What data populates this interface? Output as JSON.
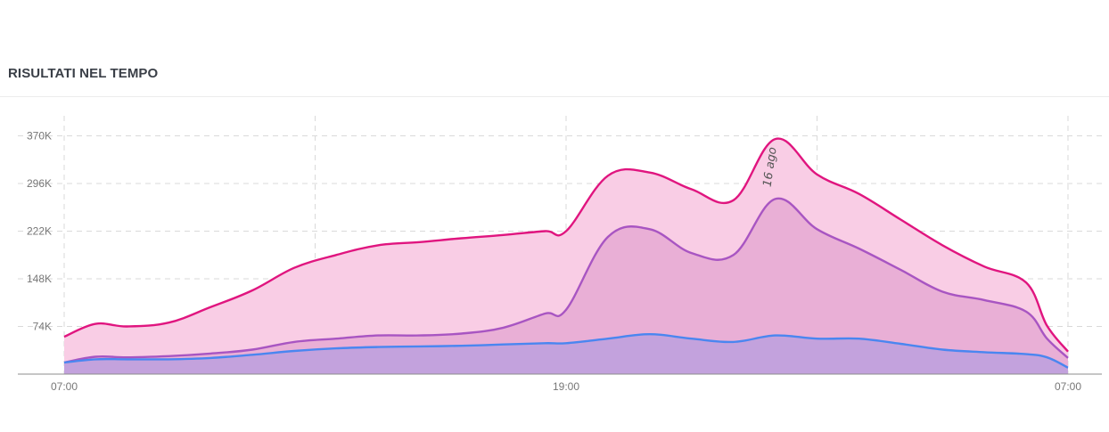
{
  "header": {
    "title": "RISULTATI NEL TEMPO"
  },
  "chart_data": {
    "type": "area",
    "title": "RISULTATI NEL TEMPO",
    "xlabel": "",
    "ylabel": "",
    "x_tick_labels": [
      "07:00",
      "19:00",
      "07:00"
    ],
    "y_ticks": [
      74000,
      148000,
      222000,
      296000,
      370000
    ],
    "y_tick_labels": [
      "74K",
      "148K",
      "222K",
      "296K",
      "370K"
    ],
    "ylim": [
      0,
      400000
    ],
    "x_range_hours": [
      0,
      24
    ],
    "grid": true,
    "legend": "none",
    "annotations": [
      {
        "label": "16 ago",
        "x_hours": 17
      }
    ],
    "series": [
      {
        "color": "#e0157f",
        "fill": "#f9cde5",
        "x_hours": [
          0,
          0.75,
          1.5,
          2.5,
          3.5,
          4.5,
          5.5,
          6.5,
          7.5,
          8.5,
          9.5,
          10.5,
          11.5,
          12,
          13,
          14,
          15,
          16,
          17,
          18,
          19,
          20,
          21,
          22,
          23,
          23.5,
          24
        ],
        "values": [
          58000,
          78000,
          74000,
          80000,
          104000,
          130000,
          165000,
          185000,
          200000,
          205000,
          211000,
          216000,
          222000,
          222000,
          308000,
          313000,
          287000,
          270000,
          365000,
          310000,
          280000,
          240000,
          200000,
          167000,
          142000,
          75000,
          35000
        ]
      },
      {
        "color": "#a855c2",
        "fill": "#e9afd6",
        "x_hours": [
          0,
          0.75,
          1.5,
          2.5,
          3.5,
          4.5,
          5.5,
          6.5,
          7.5,
          8.5,
          9.5,
          10.5,
          11.5,
          12,
          13,
          14,
          15,
          16,
          17,
          18,
          19,
          20,
          21,
          22,
          23,
          23.5,
          24
        ],
        "values": [
          18000,
          27000,
          26000,
          28000,
          32000,
          38000,
          50000,
          55000,
          60000,
          60000,
          63000,
          72000,
          94000,
          100000,
          213000,
          225000,
          188000,
          185000,
          272000,
          225000,
          195000,
          162000,
          128000,
          115000,
          97000,
          55000,
          25000
        ]
      },
      {
        "color": "#4a86f0",
        "fill": "#c3a2dd",
        "x_hours": [
          0,
          0.75,
          1.5,
          2.5,
          3.5,
          4.5,
          5.5,
          6.5,
          7.5,
          8.5,
          9.5,
          10.5,
          11.5,
          12,
          13,
          14,
          15,
          16,
          17,
          18,
          19,
          20,
          21,
          22,
          23,
          23.5,
          24
        ],
        "values": [
          18000,
          23000,
          23000,
          23000,
          25000,
          30000,
          36000,
          40000,
          42000,
          43000,
          44000,
          46000,
          48000,
          48000,
          55000,
          62000,
          55000,
          50000,
          60000,
          55000,
          55000,
          47000,
          38000,
          34000,
          31000,
          26000,
          10000
        ]
      }
    ]
  }
}
